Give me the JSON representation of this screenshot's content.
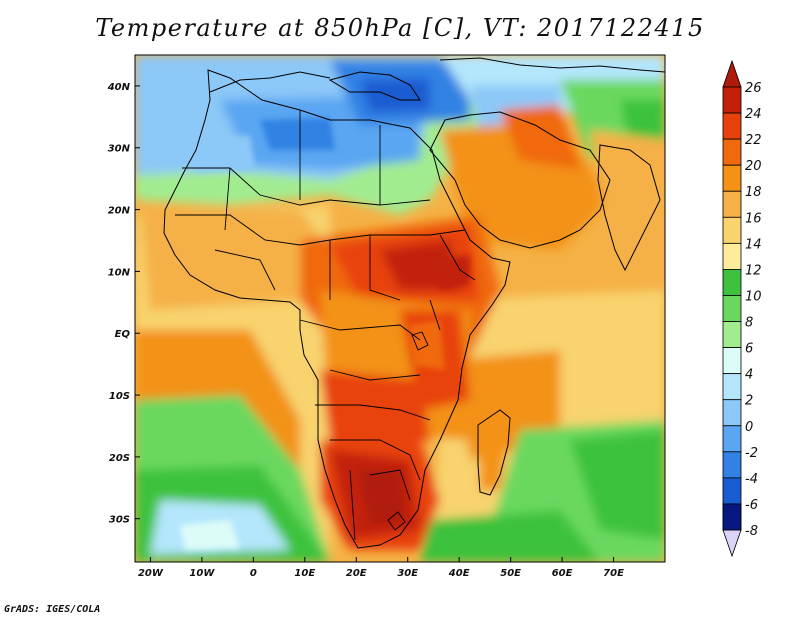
{
  "title": "Temperature at 850hPa [C], VT: 2017122415",
  "footer": "GrADS: IGES/COLA",
  "map": {
    "region": "Africa and western Indian Ocean",
    "lon_range": [
      -23,
      80
    ],
    "lat_range": [
      -37,
      45
    ],
    "lon_ticks": [
      "20W",
      "10W",
      "0",
      "10E",
      "20E",
      "30E",
      "40E",
      "50E",
      "60E",
      "70E"
    ],
    "lat_ticks": [
      "40N",
      "30N",
      "20N",
      "10N",
      "EQ",
      "10S",
      "20S",
      "30S"
    ]
  },
  "colorbar": {
    "labels": [
      "26",
      "24",
      "22",
      "20",
      "18",
      "16",
      "14",
      "12",
      "10",
      "8",
      "6",
      "4",
      "2",
      "0",
      "-2",
      "-4",
      "-6",
      "-8"
    ],
    "colors": [
      "#c22008",
      "#e8420c",
      "#f0690e",
      "#f39216",
      "#f5b146",
      "#f8d36e",
      "#fdec9c",
      "#3ec23e",
      "#6ad85e",
      "#a2ec90",
      "#dcfcf8",
      "#b4e6fc",
      "#8cc8f8",
      "#5aa6f2",
      "#3282e4",
      "#1a5cd2",
      "#0a3ab2",
      "#061880"
    ],
    "over_color": "#b01a0a",
    "under_color": "#dcd4f8"
  }
}
